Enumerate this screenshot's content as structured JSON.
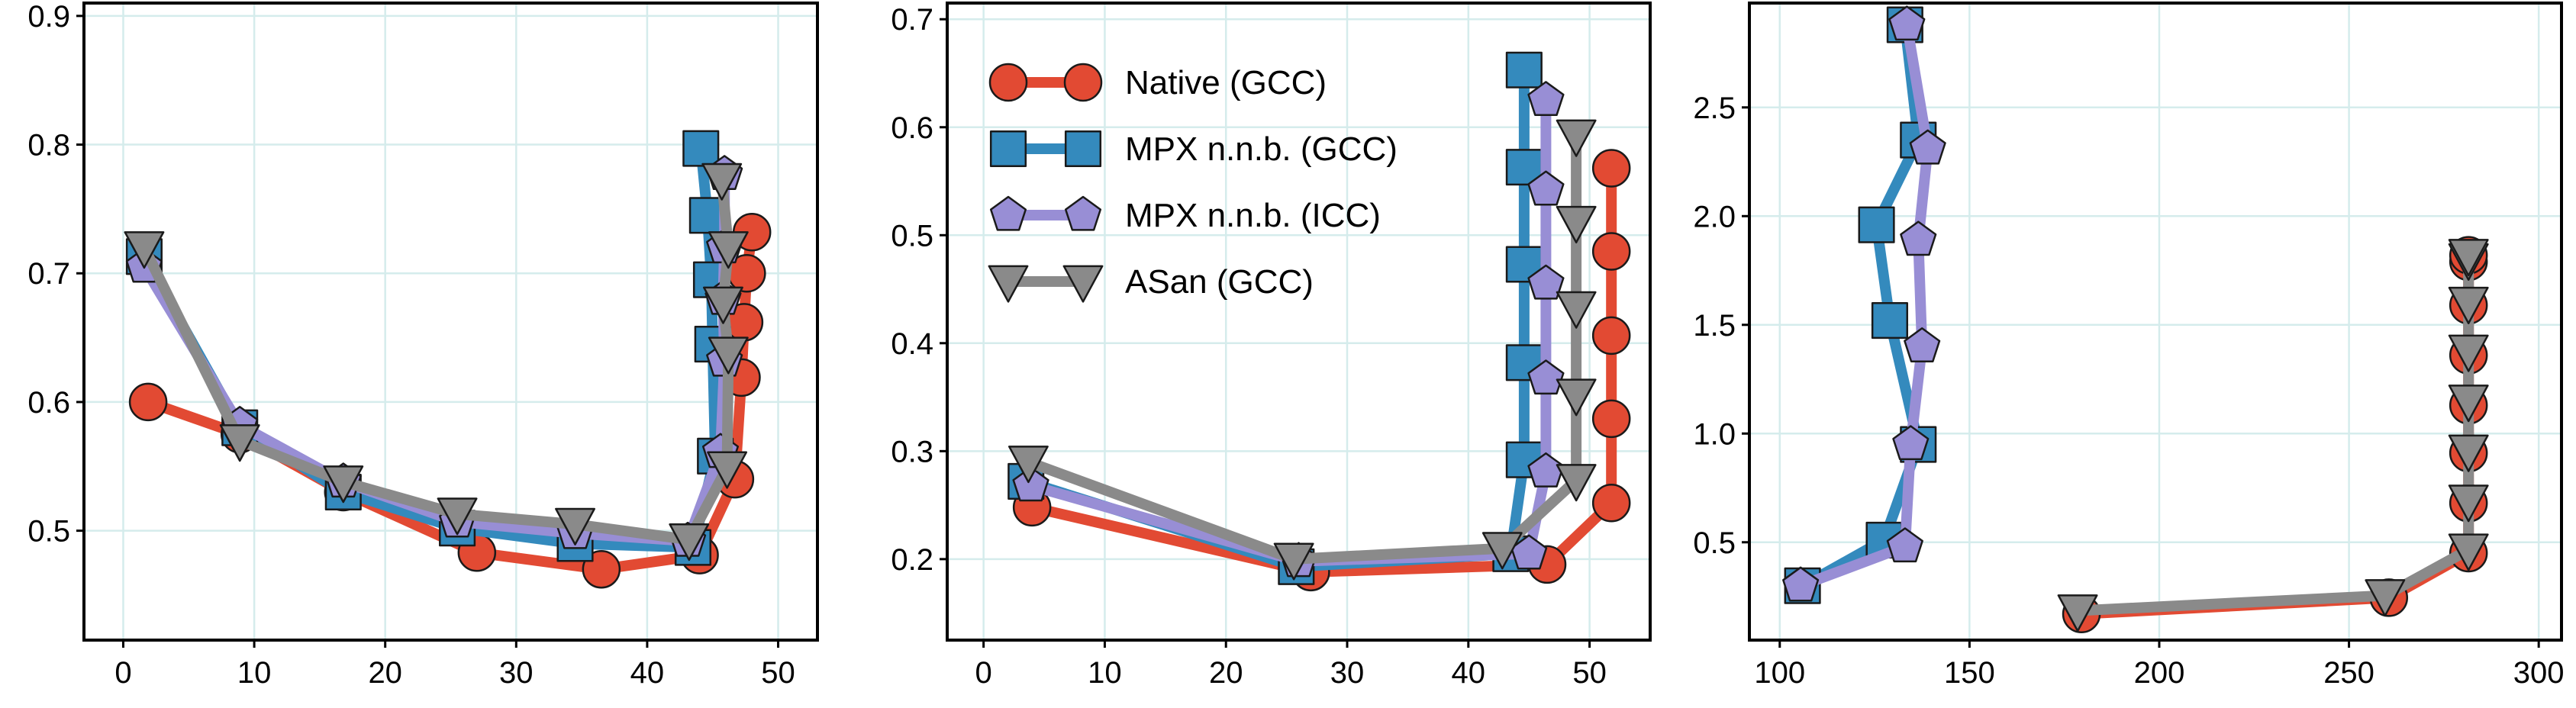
{
  "colors": {
    "background": "#ffffff",
    "grid": "#d5ecec",
    "axis": "#000000"
  },
  "chart_data": [
    {
      "type": "line",
      "title": "",
      "xlabel": "",
      "ylabel": "",
      "xlim": [
        -3,
        53
      ],
      "ylim": [
        0.415,
        0.91
      ],
      "xticks": [
        0,
        10,
        20,
        30,
        40,
        50
      ],
      "xtick_labels": [
        "0",
        "10",
        "20",
        "30",
        "40",
        "50"
      ],
      "yticks": [
        0.5,
        0.6,
        0.7,
        0.8,
        0.9
      ],
      "ytick_labels": [
        "0.5",
        "0.6",
        "0.7",
        "0.8",
        "0.9"
      ],
      "grid": true,
      "legend": null,
      "series": [
        {
          "name": "Native (GCC)",
          "color": "#e24a33",
          "marker": "circle",
          "x": [
            1.9,
            8.9,
            16.8,
            27.0,
            36.5,
            44.0,
            46.7,
            47.2,
            47.4,
            47.6,
            48.0
          ],
          "y": [
            0.6,
            0.575,
            0.53,
            0.483,
            0.47,
            0.481,
            0.54,
            0.619,
            0.662,
            0.7,
            0.732
          ]
        },
        {
          "name": "MPX n.n.b. (GCC)",
          "color": "#348abd",
          "marker": "square",
          "x": [
            1.6,
            8.9,
            16.8,
            25.5,
            34.5,
            43.5,
            45.2,
            45.0,
            44.9,
            44.6,
            44.1
          ],
          "y": [
            0.713,
            0.58,
            0.53,
            0.502,
            0.49,
            0.487,
            0.558,
            0.645,
            0.695,
            0.745,
            0.797
          ]
        },
        {
          "name": "MPX n.n.b. (ICC)",
          "color": "#988ed5",
          "marker": "pentagon",
          "x": [
            1.6,
            8.9,
            16.8,
            25.5,
            34.5,
            43.1,
            45.6,
            45.9,
            45.8,
            45.9,
            45.9
          ],
          "y": [
            0.705,
            0.582,
            0.538,
            0.507,
            0.498,
            0.492,
            0.561,
            0.632,
            0.68,
            0.72,
            0.777
          ]
        },
        {
          "name": "ASan (GCC)",
          "color": "#8a8a8a",
          "marker": "triangle-down",
          "x": [
            1.6,
            8.9,
            16.8,
            25.5,
            34.5,
            43.2,
            46.1,
            46.2,
            45.8,
            46.2,
            45.7
          ],
          "y": [
            0.72,
            0.57,
            0.538,
            0.513,
            0.505,
            0.493,
            0.549,
            0.638,
            0.677,
            0.72,
            0.773
          ]
        }
      ]
    },
    {
      "type": "line",
      "title": "",
      "xlabel": "",
      "ylabel": "",
      "xlim": [
        -3,
        55
      ],
      "ylim": [
        0.125,
        0.715
      ],
      "xticks": [
        0,
        10,
        20,
        30,
        40,
        50
      ],
      "xtick_labels": [
        "0",
        "10",
        "20",
        "30",
        "40",
        "50"
      ],
      "yticks": [
        0.2,
        0.3,
        0.4,
        0.5,
        0.6,
        0.7
      ],
      "ytick_labels": [
        "0.2",
        "0.3",
        "0.4",
        "0.5",
        "0.6",
        "0.7"
      ],
      "grid": true,
      "legend": {
        "position": "upper-left",
        "entries": [
          "Native (GCC)",
          "MPX n.n.b. (GCC)",
          "MPX n.n.b. (ICC)",
          "ASan (GCC)"
        ]
      },
      "series": [
        {
          "name": "Native (GCC)",
          "color": "#e24a33",
          "marker": "circle",
          "x": [
            4.0,
            27.0,
            46.5,
            51.8,
            51.8,
            51.8,
            51.8,
            51.8
          ],
          "y": [
            0.248,
            0.188,
            0.195,
            0.252,
            0.33,
            0.407,
            0.485,
            0.562
          ]
        },
        {
          "name": "MPX n.n.b. (GCC)",
          "color": "#348abd",
          "marker": "square",
          "x": [
            3.5,
            25.8,
            43.5,
            44.6,
            44.6,
            44.6,
            44.6,
            44.6
          ],
          "y": [
            0.272,
            0.193,
            0.205,
            0.292,
            0.382,
            0.473,
            0.563,
            0.653
          ]
        },
        {
          "name": "MPX n.n.b. (ICC)",
          "color": "#988ed5",
          "marker": "pentagon",
          "x": [
            3.9,
            26.0,
            45.0,
            46.4,
            46.4,
            46.4,
            46.4,
            46.4
          ],
          "y": [
            0.268,
            0.198,
            0.205,
            0.281,
            0.367,
            0.455,
            0.542,
            0.625
          ]
        },
        {
          "name": "ASan (GCC)",
          "color": "#8a8a8a",
          "marker": "triangle-down",
          "x": [
            3.7,
            25.6,
            42.8,
            48.9,
            48.9,
            48.9,
            48.9,
            48.9
          ],
          "y": [
            0.29,
            0.2,
            0.21,
            0.273,
            0.352,
            0.433,
            0.512,
            0.592
          ]
        }
      ]
    },
    {
      "type": "line",
      "title": "",
      "xlabel": "",
      "ylabel": "",
      "xlim": [
        92,
        306
      ],
      "ylim": [
        0.05,
        2.98
      ],
      "xticks": [
        100,
        150,
        200,
        250,
        300
      ],
      "xtick_labels": [
        "100",
        "150",
        "200",
        "250",
        "300"
      ],
      "yticks": [
        0.5,
        1.0,
        1.5,
        2.0,
        2.5
      ],
      "ytick_labels": [
        "0.5",
        "1.0",
        "1.5",
        "2.0",
        "2.5"
      ],
      "grid": true,
      "legend": null,
      "series": [
        {
          "name": "Native (GCC)",
          "color": "#e24a33",
          "marker": "circle",
          "x": [
            179.5,
            260.5,
            281.5,
            281.5,
            281.5,
            281.5,
            281.5,
            281.5,
            281.5,
            281.5
          ],
          "y": [
            0.17,
            0.245,
            0.45,
            0.68,
            0.91,
            1.13,
            1.36,
            1.59,
            1.79,
            1.82
          ]
        },
        {
          "name": "MPX n.n.b. (GCC)",
          "color": "#348abd",
          "marker": "square",
          "x": [
            106.0,
            127.5,
            136.5,
            129.0,
            125.5,
            136.5,
            133.0
          ],
          "y": [
            0.3,
            0.51,
            0.95,
            1.52,
            1.96,
            2.35,
            2.88
          ]
        },
        {
          "name": "MPX n.n.b. (ICC)",
          "color": "#988ed5",
          "marker": "pentagon",
          "x": [
            105.5,
            133.0,
            134.5,
            137.5,
            136.5,
            139.0,
            133.5
          ],
          "y": [
            0.3,
            0.48,
            0.95,
            1.4,
            1.89,
            2.31,
            2.88
          ]
        },
        {
          "name": "ASan (GCC)",
          "color": "#8a8a8a",
          "marker": "triangle-down",
          "x": [
            178.5,
            259.5,
            281.5,
            281.5,
            281.5,
            281.5,
            281.5,
            281.5,
            281.5,
            281.5
          ],
          "y": [
            0.185,
            0.255,
            0.465,
            0.69,
            0.92,
            1.15,
            1.38,
            1.6,
            1.8,
            1.82
          ]
        }
      ]
    }
  ]
}
